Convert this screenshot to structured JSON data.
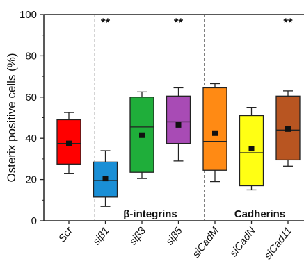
{
  "chart_data": {
    "type": "box",
    "ylabel": "Osterix positive cells (%)",
    "ylim": [
      0,
      100
    ],
    "yticks": [
      0,
      20,
      40,
      60,
      80,
      100
    ],
    "categories": [
      "Scr",
      "siβ1",
      "siβ3",
      "siβ5",
      "siCadM",
      "siCadN",
      "siCad11"
    ],
    "boxes": [
      {
        "label": "Scr",
        "color": "#ff0000",
        "whisker_low": 23,
        "q1": 27.5,
        "median": 37.5,
        "q3": 49,
        "whisker_high": 52.5,
        "mean": 37.5
      },
      {
        "label": "siβ1",
        "color": "#1a8fd6",
        "whisker_low": 7,
        "q1": 11.5,
        "median": 19.5,
        "q3": 28.5,
        "whisker_high": 34,
        "mean": 20.5
      },
      {
        "label": "siβ3",
        "color": "#1fae3a",
        "whisker_low": 20.5,
        "q1": 23.5,
        "median": 45.5,
        "q3": 60,
        "whisker_high": 62.5,
        "mean": 41.5
      },
      {
        "label": "siβ5",
        "color": "#a84bb5",
        "whisker_low": 29,
        "q1": 37.5,
        "median": 48,
        "q3": 60.5,
        "whisker_high": 64.5,
        "mean": 46.5
      },
      {
        "label": "siCadM",
        "color": "#ff8a14",
        "whisker_low": 19,
        "q1": 24.5,
        "median": 38.5,
        "q3": 64.5,
        "whisker_high": 66.5,
        "mean": 42.5
      },
      {
        "label": "siCadN",
        "color": "#ffff14",
        "whisker_low": 15,
        "q1": 17,
        "median": 33,
        "q3": 51,
        "whisker_high": 55,
        "mean": 35
      },
      {
        "label": "siCad11",
        "color": "#b85521",
        "whisker_low": 26.5,
        "q1": 29.5,
        "median": 44,
        "q3": 60.5,
        "whisker_high": 63,
        "mean": 44.5
      }
    ],
    "groups": [
      {
        "label": "β-integrins",
        "from": 1,
        "to": 3
      },
      {
        "label": "Cadherins",
        "from": 4,
        "to": 6
      }
    ],
    "significance": [
      {
        "category": "siβ1",
        "text": "**"
      },
      {
        "category": "siβ5",
        "text": "**"
      },
      {
        "category": "siCad11",
        "text": "**"
      }
    ],
    "group_separators_after": [
      0,
      3
    ]
  }
}
